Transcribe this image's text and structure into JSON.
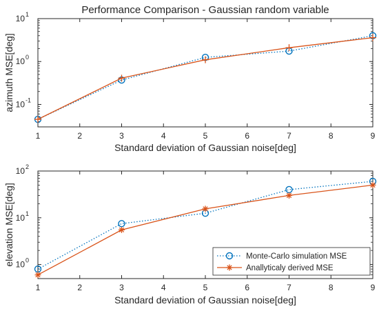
{
  "title": "Performance Comparison - Gaussian random variable",
  "chart_data": [
    {
      "type": "line",
      "title": "Performance Comparison - Gaussian random variable",
      "xlabel": "Standard deviation of Gaussian noise[deg]",
      "ylabel": "azimuth MSE[deg]",
      "xlim": [
        1,
        9
      ],
      "ylim": [
        0.03,
        10
      ],
      "yscale": "log",
      "grid": false,
      "x_ticks": [
        "1",
        "2",
        "3",
        "4",
        "5",
        "6",
        "7",
        "8",
        "9"
      ],
      "y_ticks": [
        {
          "base": "10",
          "exp": "-1",
          "value": 0.1
        },
        {
          "base": "10",
          "exp": "0",
          "value": 1
        },
        {
          "base": "10",
          "exp": "1",
          "value": 10
        }
      ],
      "x": [
        1,
        3,
        5,
        7,
        9
      ],
      "series": [
        {
          "name": "Monte-Carlo simulation MSE",
          "values": [
            0.045,
            0.37,
            1.25,
            1.75,
            4.0
          ],
          "color": "#0072BD",
          "style": "dotted",
          "marker": "circle"
        },
        {
          "name": "Anallyticaly derived MSE",
          "values": [
            0.045,
            0.41,
            1.1,
            2.1,
            3.6
          ],
          "color": "#D95319",
          "style": "solid",
          "marker": "plus"
        }
      ]
    },
    {
      "type": "line",
      "title": "",
      "xlabel": "Standard deviation of Gaussian noise[deg]",
      "ylabel": "elevation MSE[deg]",
      "xlim": [
        1,
        9
      ],
      "ylim": [
        0.5,
        100
      ],
      "yscale": "log",
      "grid": false,
      "legend": "bottom-right",
      "x_ticks": [
        "1",
        "2",
        "3",
        "4",
        "5",
        "6",
        "7",
        "8",
        "9"
      ],
      "y_ticks": [
        {
          "base": "10",
          "exp": "0",
          "value": 1
        },
        {
          "base": "10",
          "exp": "1",
          "value": 10
        },
        {
          "base": "10",
          "exp": "2",
          "value": 100
        }
      ],
      "x": [
        1,
        3,
        5,
        7,
        9
      ],
      "series": [
        {
          "name": "Monte-Carlo simulation MSE",
          "values": [
            0.8,
            7.5,
            12.5,
            40,
            60
          ],
          "color": "#0072BD",
          "style": "dotted",
          "marker": "circle"
        },
        {
          "name": "Anallyticaly derived MSE",
          "values": [
            0.6,
            5.5,
            15.5,
            30,
            50
          ],
          "color": "#D95319",
          "style": "solid",
          "marker": "asterisk"
        }
      ]
    }
  ]
}
